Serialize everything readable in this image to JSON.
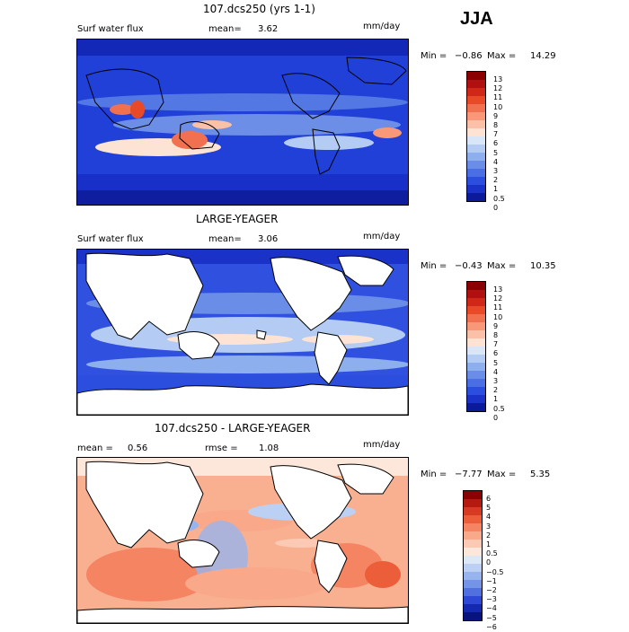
{
  "season": "JJA",
  "panels": [
    {
      "title": "107.dcs250 (yrs 1-1)",
      "header_left": "Surf water flux",
      "header_mid_label": "mean=",
      "header_mid_value": "3.62",
      "units": "mm/day",
      "min_label": "Min =",
      "min_value": "−0.86",
      "max_label": "Max =",
      "max_value": "14.29",
      "ocean_base": "#2040d8",
      "land_fill": false,
      "colorbar_labels": [
        "13",
        "12",
        "11",
        "10",
        "9",
        "8",
        "7",
        "6",
        "5",
        "4",
        "3",
        "2",
        "1",
        "0.5",
        "0"
      ],
      "colorbar_colors": [
        "#8b0000",
        "#b01010",
        "#d02818",
        "#e84a28",
        "#f07050",
        "#f89878",
        "#fbc0a8",
        "#fce3d4",
        "#d8e6f8",
        "#b4ccf3",
        "#8eafee",
        "#6a8ee8",
        "#4a6ee4",
        "#2c4ede",
        "#1a32c8",
        "#0a1a9a"
      ]
    },
    {
      "title": "LARGE-YEAGER",
      "header_left": "Surf water flux",
      "header_mid_label": "mean=",
      "header_mid_value": "3.06",
      "units": "mm/day",
      "min_label": "Min =",
      "min_value": "−0.43",
      "max_label": "Max =",
      "max_value": "10.35",
      "ocean_base": "#3050e0",
      "land_fill": true,
      "colorbar_labels": [
        "13",
        "12",
        "11",
        "10",
        "9",
        "8",
        "7",
        "6",
        "5",
        "4",
        "3",
        "2",
        "1",
        "0.5",
        "0"
      ],
      "colorbar_colors": [
        "#8b0000",
        "#b01010",
        "#d02818",
        "#e84a28",
        "#f07050",
        "#f89878",
        "#fbc0a8",
        "#fce3d4",
        "#d8e6f8",
        "#b4ccf3",
        "#8eafee",
        "#6a8ee8",
        "#4a6ee4",
        "#2c4ede",
        "#1a32c8",
        "#0a1a9a"
      ]
    },
    {
      "title": "107.dcs250 - LARGE-YEAGER",
      "header_left_label": "mean =",
      "header_left_value": "0.56",
      "header_mid_label": "rmse =",
      "header_mid_value": "1.08",
      "units": "mm/day",
      "min_label": "Min =",
      "min_value": "−7.77",
      "max_label": "Max =",
      "max_value": "5.35",
      "ocean_base": "#f8b090",
      "land_fill": true,
      "colorbar_labels": [
        "6",
        "5",
        "4",
        "3",
        "2",
        "1",
        "0.5",
        "0",
        "−0.5",
        "−1",
        "−2",
        "−3",
        "−4",
        "−5",
        "−6"
      ],
      "colorbar_colors": [
        "#8b0000",
        "#b41a10",
        "#d63a22",
        "#ec5e3a",
        "#f48462",
        "#faa88a",
        "#fccab4",
        "#fde6da",
        "#dce8f8",
        "#bcd0f4",
        "#98b4ee",
        "#7494e8",
        "#5070e0",
        "#2c48d4",
        "#1428b0",
        "#08147e"
      ]
    }
  ]
}
